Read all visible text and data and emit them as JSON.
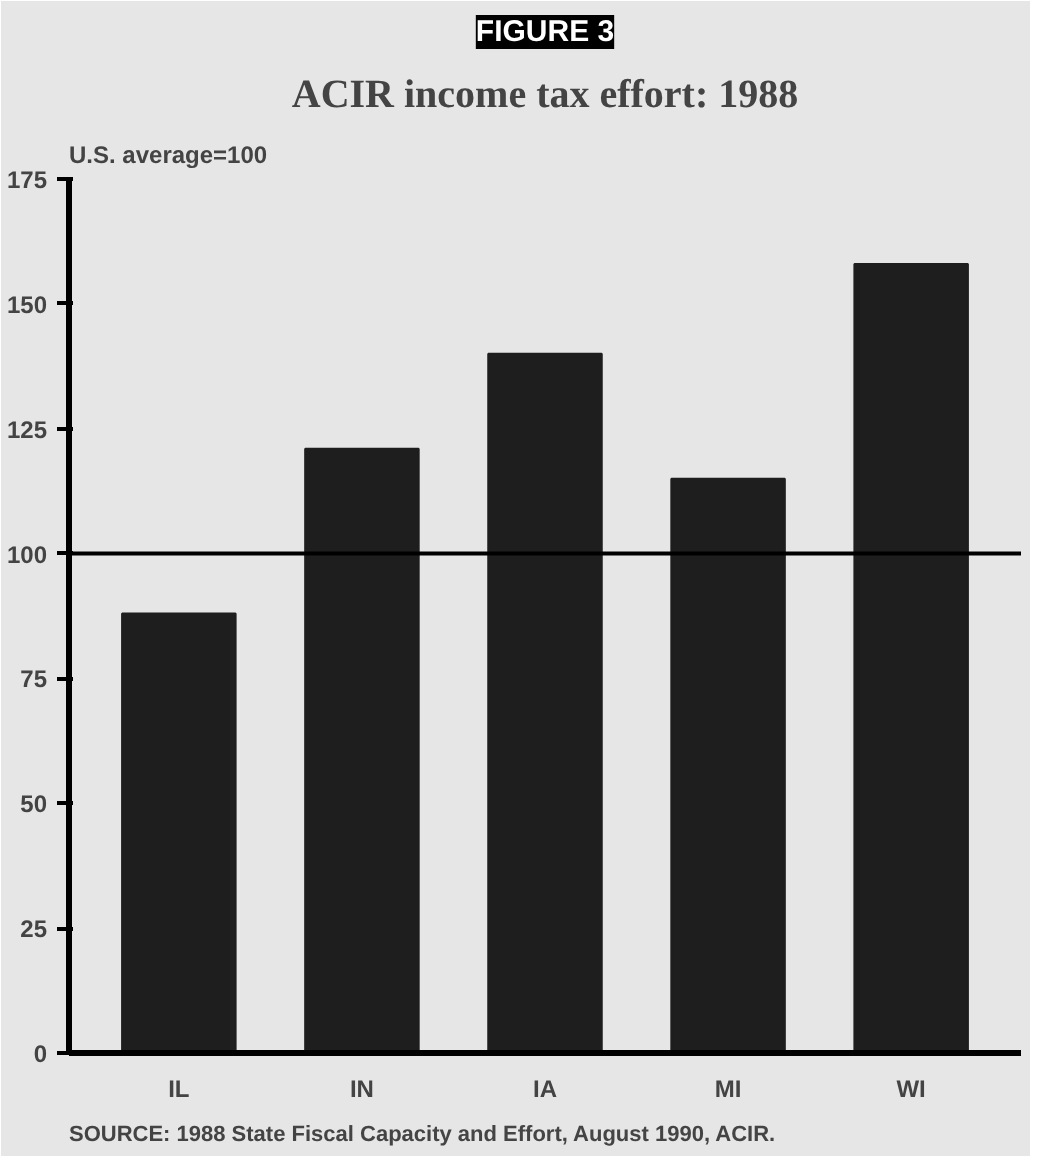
{
  "chart_data": {
    "type": "bar",
    "title": "FIGURE 3",
    "subtitle": "ACIR income tax effort: 1988",
    "ylabel": "U.S. average=100",
    "categories": [
      "IL",
      "IN",
      "IA",
      "MI",
      "WI"
    ],
    "values": [
      88,
      121,
      140,
      115,
      158
    ],
    "color": "#1e1e1e",
    "ylim": [
      0,
      175
    ],
    "yticks": [
      0,
      25,
      50,
      75,
      100,
      125,
      150,
      175
    ],
    "ref_lines": [
      {
        "axis": "y",
        "value": 100,
        "color": "#000000"
      }
    ],
    "annotations": [
      "SOURCE: 1988 State Fiscal Capacity and Effort, August 1990, ACIR."
    ]
  }
}
